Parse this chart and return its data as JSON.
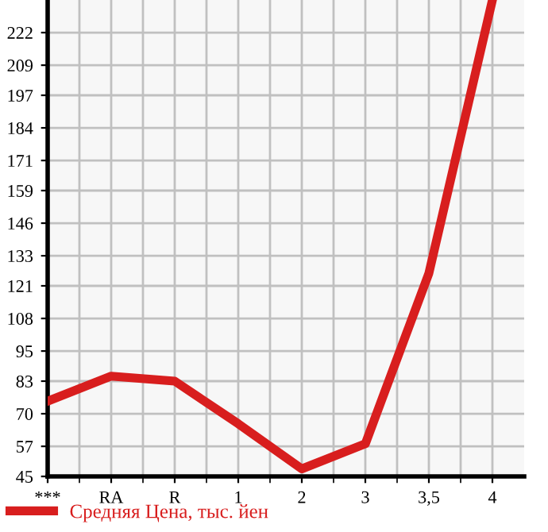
{
  "chart_data": {
    "type": "line",
    "categories": [
      "***",
      "RA",
      "R",
      "1",
      "2",
      "3",
      "3,5",
      "4"
    ],
    "series": [
      {
        "name": "Средняя Цена, тыс. йен",
        "color": "#d81e1e",
        "values": [
          75,
          85,
          83,
          66,
          48,
          58,
          126,
          235
        ]
      }
    ],
    "ylim": [
      45,
      235
    ],
    "yticks": [
      45,
      57,
      70,
      83,
      95,
      108,
      121,
      133,
      146,
      159,
      171,
      184,
      197,
      209,
      222
    ],
    "grid": true,
    "legend": "bottom",
    "marker": "none",
    "line_style": "solid"
  }
}
